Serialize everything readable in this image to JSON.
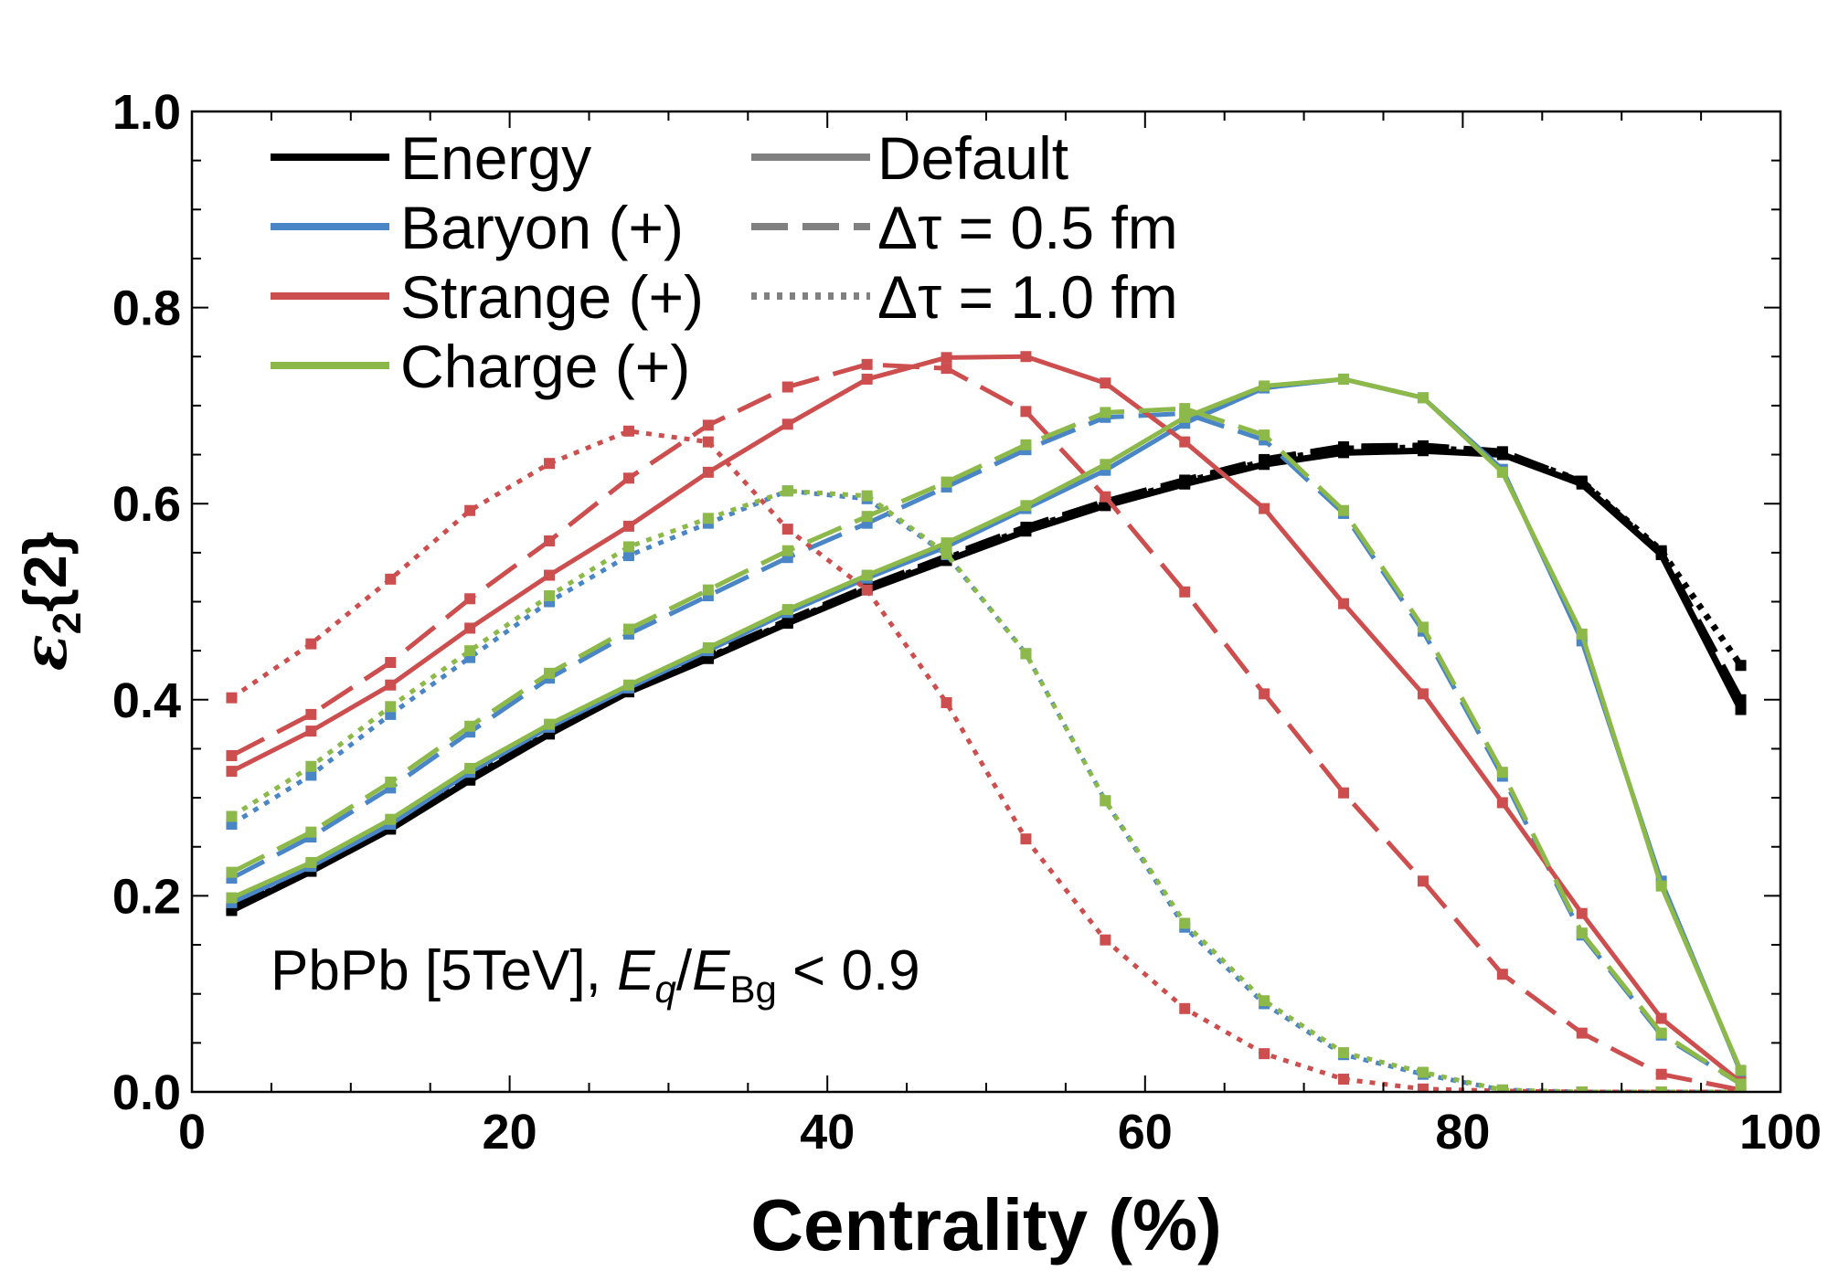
{
  "chart_data": {
    "type": "line",
    "xlabel": "Centrality (%)",
    "ylabel": {
      "symbol": "ε",
      "sub": "2",
      "rest": "{2}"
    },
    "xlim": [
      0,
      100
    ],
    "ylim": [
      0.0,
      1.0
    ],
    "x_ticks": [
      "0",
      "20",
      "40",
      "60",
      "80",
      "100"
    ],
    "y_ticks": [
      "0.0",
      "0.2",
      "0.4",
      "0.6",
      "0.8",
      "1.0"
    ],
    "annotation": {
      "prefix": "PbPb [5TeV], ",
      "e1": "E",
      "e1_sub": "q",
      "slash": "/",
      "e2": "E",
      "e2_sub": "Bg",
      "suffix": " < 0.9"
    },
    "legend_colors": [
      {
        "label": "Energy",
        "color": "#000000"
      },
      {
        "label": "Baryon (+)",
        "color": "#4a86c5"
      },
      {
        "label": "Strange (+)",
        "color": "#cc4e4e"
      },
      {
        "label": "Charge (+)",
        "color": "#8db84a"
      }
    ],
    "legend_styles": [
      {
        "label": "Default",
        "dash": "solid"
      },
      {
        "label": "Δτ = 0.5 fm",
        "dash": "dashed"
      },
      {
        "label": "Δτ = 1.0 fm",
        "dash": "dotted"
      }
    ],
    "x": [
      2.5,
      7.5,
      12.5,
      17.5,
      22.5,
      27.5,
      32.5,
      37.5,
      42.5,
      47.5,
      52.5,
      57.5,
      62.5,
      67.5,
      72.5,
      77.5,
      82.5,
      87.5,
      92.5,
      97.5
    ],
    "series": [
      {
        "name": "Energy",
        "style": "Default",
        "color": "#000000",
        "values": [
          0.185,
          0.225,
          0.268,
          0.318,
          0.365,
          0.408,
          0.442,
          0.478,
          0.512,
          0.542,
          0.572,
          0.598,
          0.62,
          0.64,
          0.652,
          0.654,
          0.65,
          0.62,
          0.548,
          0.39
        ]
      },
      {
        "name": "Energy",
        "style": "Δτ = 0.5 fm",
        "color": "#000000",
        "values": [
          0.188,
          0.228,
          0.272,
          0.322,
          0.368,
          0.41,
          0.445,
          0.481,
          0.515,
          0.546,
          0.576,
          0.602,
          0.624,
          0.645,
          0.658,
          0.659,
          0.653,
          0.622,
          0.55,
          0.4
        ]
      },
      {
        "name": "Energy",
        "style": "Δτ = 1.0 fm",
        "color": "#000000",
        "values": [
          0.186,
          0.226,
          0.27,
          0.32,
          0.366,
          0.409,
          0.443,
          0.479,
          0.513,
          0.544,
          0.574,
          0.6,
          0.622,
          0.643,
          0.656,
          0.657,
          0.652,
          0.623,
          0.552,
          0.435
        ]
      },
      {
        "name": "Baryon (+)",
        "style": "Default",
        "color": "#4a86c5",
        "values": [
          0.193,
          0.23,
          0.273,
          0.326,
          0.372,
          0.412,
          0.45,
          0.489,
          0.524,
          0.556,
          0.595,
          0.634,
          0.682,
          0.718,
          0.727,
          0.708,
          0.635,
          0.46,
          0.215,
          0.02
        ]
      },
      {
        "name": "Baryon (+)",
        "style": "Δτ = 0.5 fm",
        "color": "#4a86c5",
        "values": [
          0.218,
          0.26,
          0.31,
          0.367,
          0.422,
          0.467,
          0.506,
          0.545,
          0.58,
          0.617,
          0.655,
          0.688,
          0.692,
          0.665,
          0.59,
          0.47,
          0.322,
          0.16,
          0.058,
          0.008
        ]
      },
      {
        "name": "Baryon (+)",
        "style": "Δτ = 1.0 fm",
        "color": "#4a86c5",
        "values": [
          0.273,
          0.323,
          0.385,
          0.443,
          0.5,
          0.547,
          0.58,
          0.613,
          0.605,
          0.548,
          0.447,
          0.297,
          0.168,
          0.09,
          0.038,
          0.018,
          0.002,
          0.0,
          0.0,
          0.0
        ]
      },
      {
        "name": "Strange (+)",
        "style": "Default",
        "color": "#cc4e4e",
        "values": [
          0.327,
          0.368,
          0.415,
          0.473,
          0.527,
          0.577,
          0.632,
          0.681,
          0.727,
          0.749,
          0.75,
          0.723,
          0.663,
          0.595,
          0.498,
          0.406,
          0.295,
          0.182,
          0.075,
          0.01
        ]
      },
      {
        "name": "Strange (+)",
        "style": "Δτ = 0.5 fm",
        "color": "#cc4e4e",
        "values": [
          0.343,
          0.385,
          0.438,
          0.503,
          0.562,
          0.626,
          0.68,
          0.719,
          0.742,
          0.738,
          0.694,
          0.607,
          0.51,
          0.406,
          0.305,
          0.215,
          0.12,
          0.06,
          0.018,
          0.002
        ]
      },
      {
        "name": "Strange (+)",
        "style": "Δτ = 1.0 fm",
        "color": "#cc4e4e",
        "values": [
          0.402,
          0.457,
          0.523,
          0.593,
          0.641,
          0.674,
          0.663,
          0.574,
          0.512,
          0.397,
          0.258,
          0.155,
          0.085,
          0.039,
          0.013,
          0.003,
          0.001,
          0.0,
          0.0,
          0.0
        ]
      },
      {
        "name": "Charge (+)",
        "style": "Default",
        "color": "#8db84a",
        "values": [
          0.198,
          0.234,
          0.278,
          0.33,
          0.375,
          0.415,
          0.453,
          0.492,
          0.527,
          0.56,
          0.598,
          0.64,
          0.688,
          0.72,
          0.727,
          0.708,
          0.632,
          0.467,
          0.21,
          0.022
        ]
      },
      {
        "name": "Charge (+)",
        "style": "Δτ = 0.5 fm",
        "color": "#8db84a",
        "values": [
          0.224,
          0.265,
          0.316,
          0.373,
          0.427,
          0.472,
          0.512,
          0.552,
          0.587,
          0.622,
          0.66,
          0.693,
          0.697,
          0.67,
          0.593,
          0.474,
          0.326,
          0.162,
          0.06,
          0.008
        ]
      },
      {
        "name": "Charge (+)",
        "style": "Δτ = 1.0 fm",
        "color": "#8db84a",
        "values": [
          0.281,
          0.332,
          0.393,
          0.45,
          0.506,
          0.556,
          0.585,
          0.613,
          0.608,
          0.549,
          0.447,
          0.297,
          0.172,
          0.093,
          0.04,
          0.02,
          0.002,
          0.0,
          0.0,
          0.0
        ]
      }
    ]
  }
}
